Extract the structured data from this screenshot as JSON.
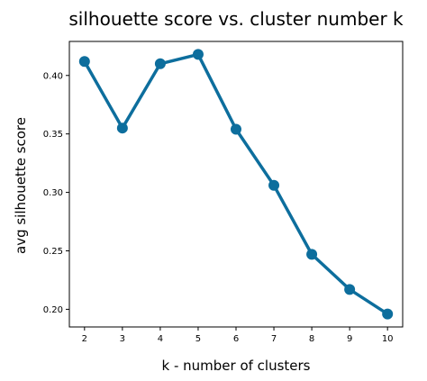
{
  "chart_data": {
    "type": "line",
    "title": "silhouette score vs. cluster number k",
    "xlabel": "k - number of clusters",
    "ylabel": "avg silhouette score",
    "x": [
      2,
      3,
      4,
      5,
      6,
      7,
      8,
      9,
      10
    ],
    "series": [
      {
        "values": [
          0.412,
          0.355,
          0.41,
          0.418,
          0.354,
          0.306,
          0.247,
          0.217,
          0.196
        ],
        "color": "#0d6e9d"
      }
    ],
    "xticks": [
      "2",
      "3",
      "4",
      "5",
      "6",
      "7",
      "8",
      "9",
      "10"
    ],
    "yticks": [
      "0.20",
      "0.25",
      "0.30",
      "0.35",
      "0.40"
    ],
    "ytick_values": [
      0.2,
      0.25,
      0.3,
      0.35,
      0.4
    ],
    "xlim": [
      1.6,
      10.4
    ],
    "ylim": [
      0.1849,
      0.4291
    ],
    "grid": false,
    "markers": true
  }
}
